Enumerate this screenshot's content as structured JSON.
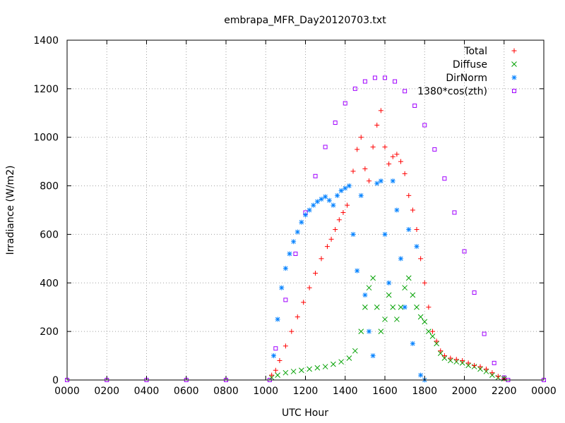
{
  "chart_data": {
    "type": "scatter",
    "title": "embrapa_MFR_Day20120703.txt",
    "xlabel": "UTC Hour",
    "ylabel": "Irradiance (W/m2)",
    "xlim": [
      0,
      24
    ],
    "ylim": [
      0,
      1400
    ],
    "x_ticks": [
      0,
      2,
      4,
      6,
      8,
      10,
      12,
      14,
      16,
      18,
      20,
      22,
      24
    ],
    "x_tick_labels": [
      "0000",
      "0200",
      "0400",
      "0600",
      "0800",
      "1000",
      "1200",
      "1400",
      "1600",
      "1800",
      "2000",
      "2200",
      "0000"
    ],
    "y_ticks": [
      0,
      200,
      400,
      600,
      800,
      1000,
      1200,
      1400
    ],
    "y_tick_labels": [
      "0",
      "200",
      "400",
      "600",
      "800",
      "1000",
      "1200",
      "1400"
    ],
    "grid": true,
    "legend_position": "top-right",
    "series": [
      {
        "name": "Total",
        "color": "#ff0000",
        "marker": "plus",
        "x": [
          10.3,
          10.5,
          10.7,
          11.0,
          11.3,
          11.6,
          11.9,
          12.2,
          12.5,
          12.8,
          13.1,
          13.3,
          13.5,
          13.7,
          13.9,
          14.1,
          14.4,
          14.6,
          14.8,
          15.0,
          15.2,
          15.4,
          15.6,
          15.8,
          16.0,
          16.2,
          16.4,
          16.6,
          16.8,
          17.0,
          17.2,
          17.4,
          17.6,
          17.8,
          18.0,
          18.2,
          18.4,
          18.6,
          18.8,
          19.0,
          19.3,
          19.6,
          19.9,
          20.2,
          20.5,
          20.8,
          21.1,
          21.4,
          21.7,
          22.0
        ],
        "y": [
          20,
          40,
          80,
          140,
          200,
          260,
          320,
          380,
          440,
          500,
          550,
          580,
          620,
          660,
          690,
          720,
          860,
          950,
          1000,
          870,
          820,
          960,
          1050,
          1110,
          960,
          890,
          920,
          930,
          900,
          850,
          760,
          700,
          620,
          500,
          400,
          300,
          200,
          160,
          120,
          100,
          90,
          85,
          80,
          70,
          60,
          55,
          45,
          30,
          15,
          5
        ]
      },
      {
        "name": "Diffuse",
        "color": "#00a000",
        "marker": "x",
        "x": [
          10.3,
          10.6,
          11.0,
          11.4,
          11.8,
          12.2,
          12.6,
          13.0,
          13.4,
          13.8,
          14.2,
          14.5,
          14.8,
          15.0,
          15.2,
          15.4,
          15.6,
          15.8,
          16.0,
          16.2,
          16.4,
          16.6,
          16.8,
          17.0,
          17.2,
          17.4,
          17.6,
          17.8,
          18.0,
          18.2,
          18.4,
          18.6,
          18.8,
          19.0,
          19.3,
          19.6,
          19.9,
          20.2,
          20.5,
          20.8,
          21.1,
          21.4,
          21.7,
          22.0
        ],
        "y": [
          10,
          20,
          30,
          35,
          40,
          45,
          50,
          55,
          65,
          75,
          90,
          120,
          200,
          300,
          380,
          420,
          300,
          200,
          250,
          350,
          300,
          250,
          300,
          380,
          420,
          350,
          300,
          260,
          240,
          200,
          180,
          150,
          110,
          90,
          80,
          75,
          70,
          60,
          55,
          45,
          35,
          20,
          10,
          5
        ]
      },
      {
        "name": "DirNorm",
        "color": "#0080ff",
        "marker": "star",
        "x": [
          10.4,
          10.6,
          10.8,
          11.0,
          11.2,
          11.4,
          11.6,
          11.8,
          12.0,
          12.2,
          12.4,
          12.6,
          12.8,
          13.0,
          13.2,
          13.4,
          13.6,
          13.8,
          14.0,
          14.2,
          14.4,
          14.6,
          14.8,
          15.0,
          15.2,
          15.4,
          15.6,
          15.8,
          16.0,
          16.2,
          16.4,
          16.6,
          16.8,
          17.0,
          17.2,
          17.4,
          17.6,
          17.8,
          18.0
        ],
        "y": [
          100,
          250,
          380,
          460,
          520,
          570,
          610,
          650,
          680,
          700,
          720,
          735,
          745,
          755,
          740,
          720,
          760,
          780,
          790,
          800,
          600,
          450,
          760,
          350,
          200,
          100,
          810,
          820,
          600,
          400,
          820,
          700,
          500,
          300,
          620,
          150,
          550,
          20,
          0
        ]
      },
      {
        "name": "1380*cos(zth)",
        "color": "#a000ff",
        "marker": "square",
        "x": [
          0,
          2,
          4,
          6,
          8,
          10.2,
          10.5,
          11.0,
          11.5,
          12.0,
          12.5,
          13.0,
          13.5,
          14.0,
          14.5,
          15.0,
          15.5,
          16.0,
          16.5,
          17.0,
          17.5,
          18.0,
          18.5,
          19.0,
          19.5,
          20.0,
          20.5,
          21.0,
          21.5,
          22.0,
          22.2,
          24
        ],
        "y": [
          0,
          0,
          0,
          0,
          0,
          0,
          130,
          330,
          520,
          690,
          840,
          960,
          1060,
          1140,
          1200,
          1230,
          1245,
          1245,
          1230,
          1190,
          1130,
          1050,
          950,
          830,
          690,
          530,
          360,
          190,
          70,
          10,
          0,
          0
        ]
      }
    ]
  }
}
